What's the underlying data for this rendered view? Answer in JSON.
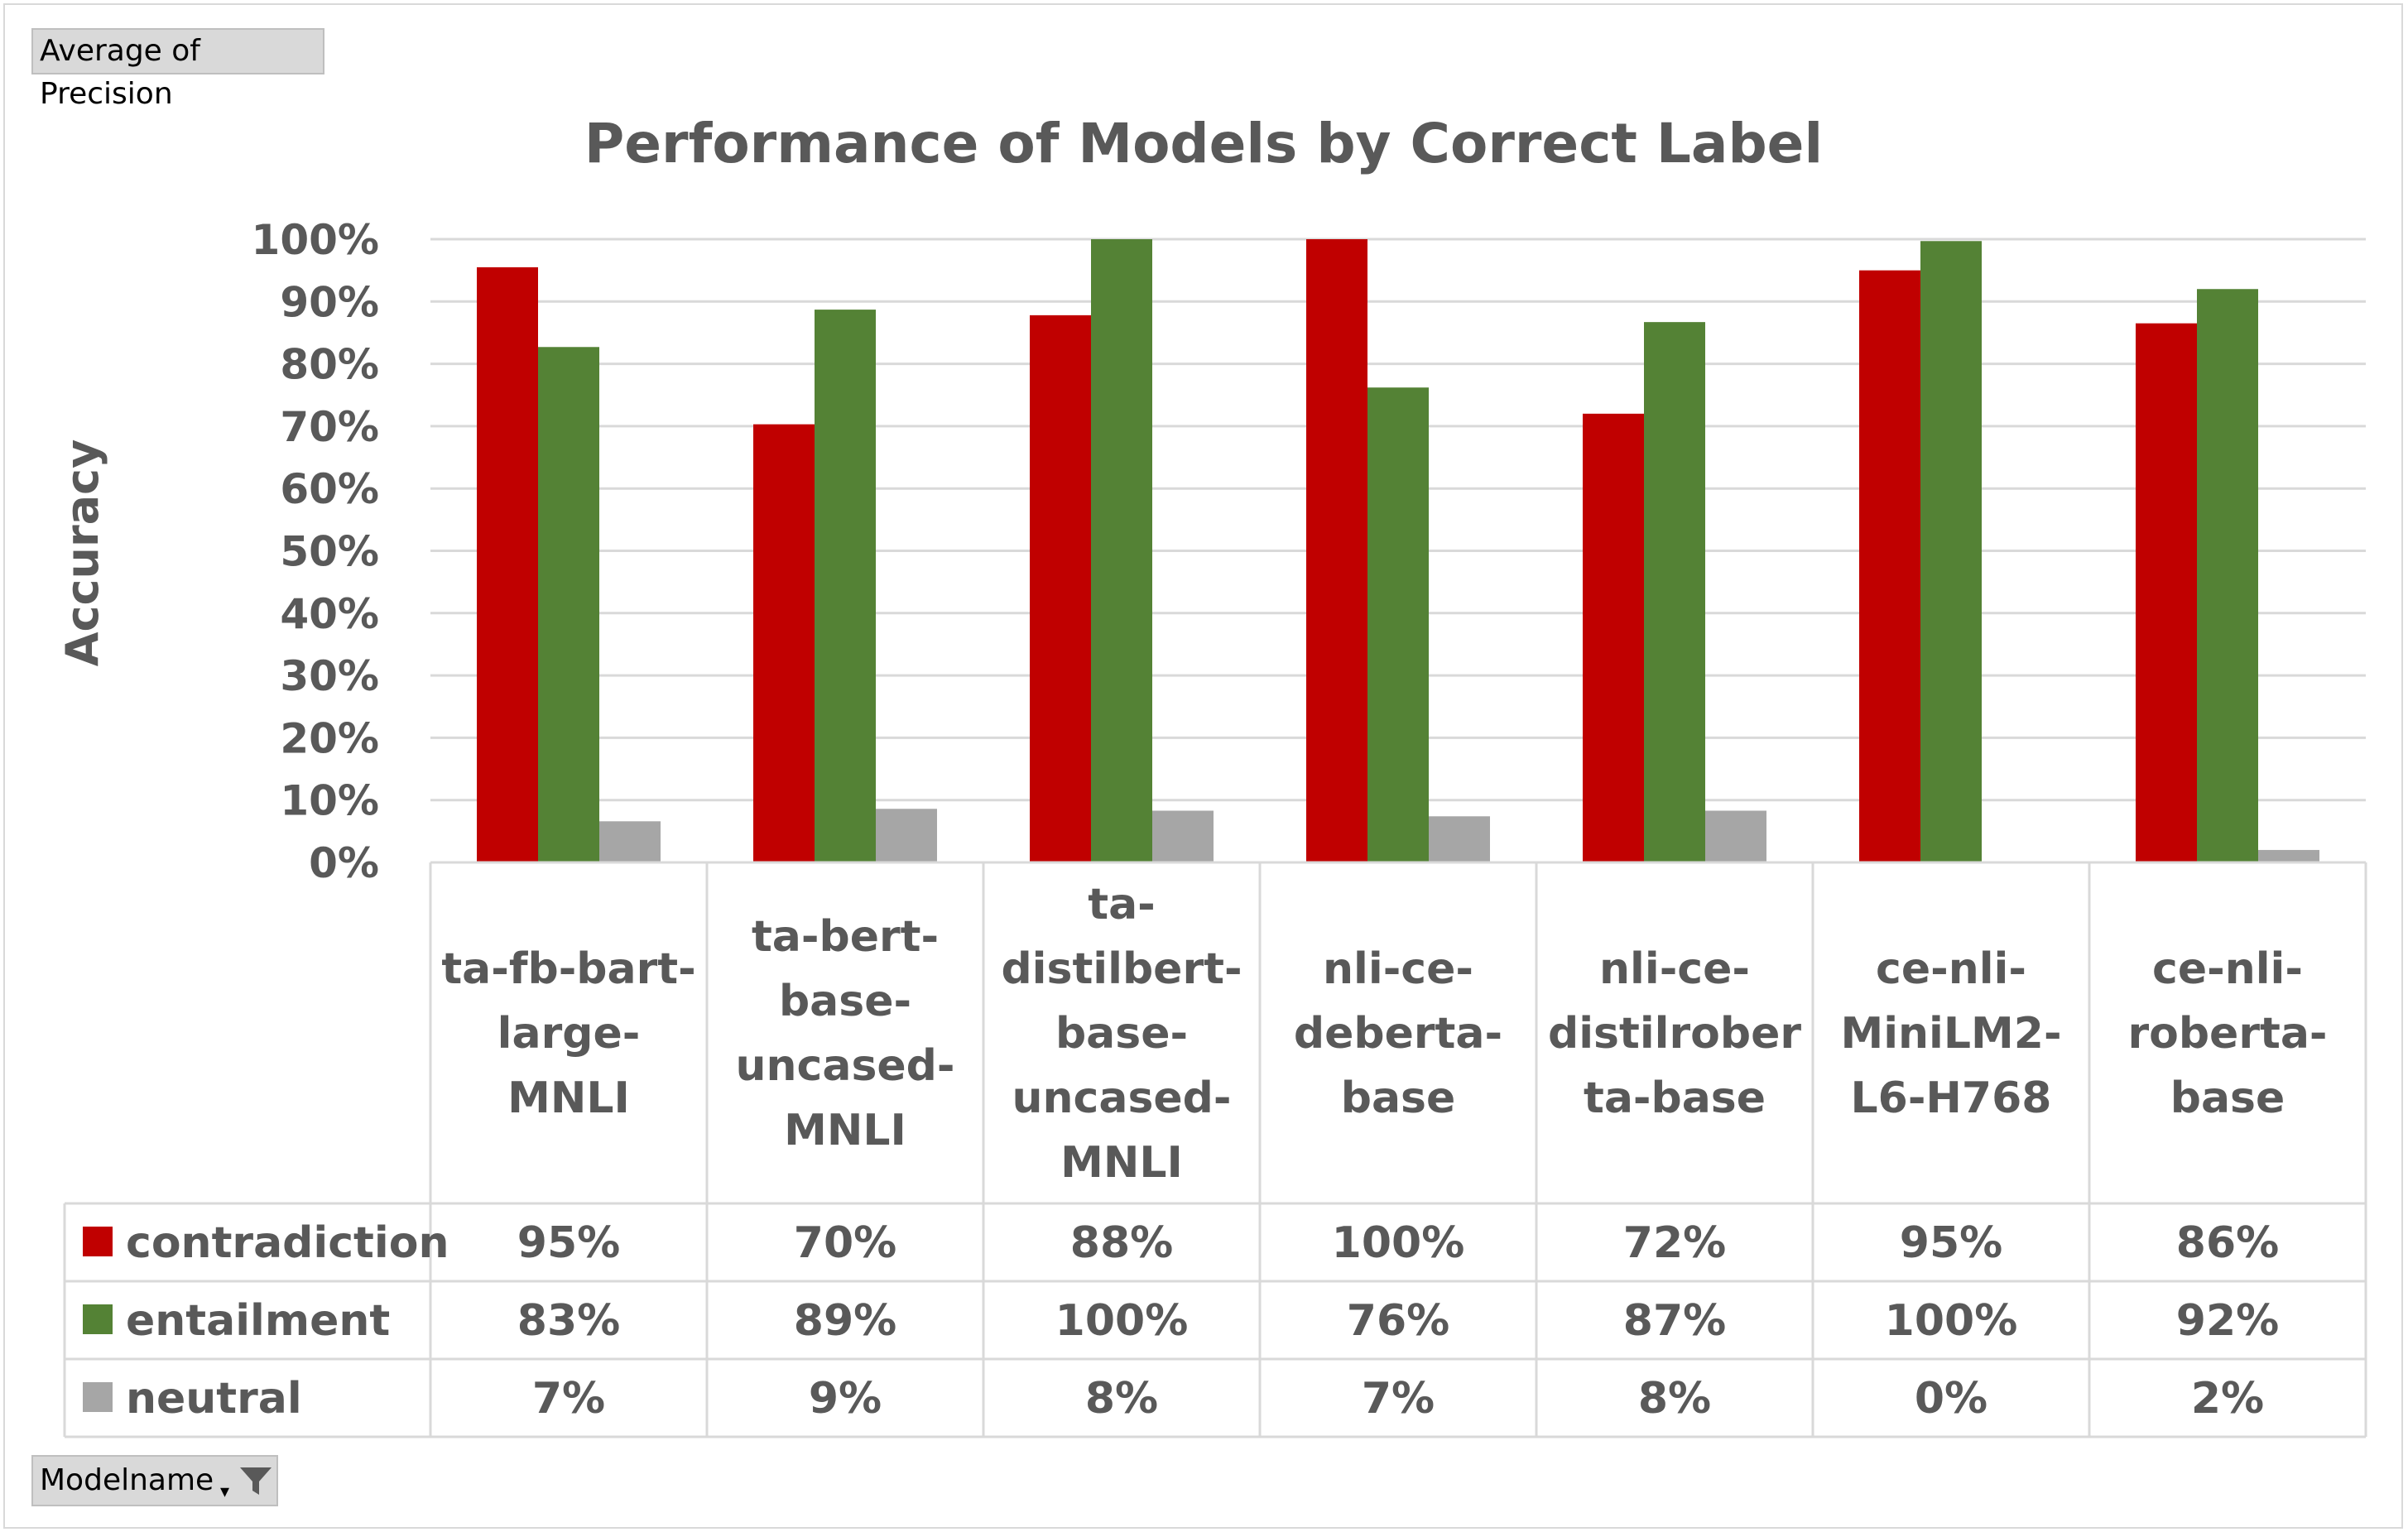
{
  "pivot": {
    "value_field": "Average of Precision",
    "axis_field": "Modelname"
  },
  "chart_data": {
    "type": "bar",
    "title": "Performance of Models by Correct Label",
    "xlabel": "",
    "ylabel": "Accuracy",
    "ylim": [
      0,
      1
    ],
    "y_ticks": [
      "0%",
      "10%",
      "20%",
      "30%",
      "40%",
      "50%",
      "60%",
      "70%",
      "80%",
      "90%",
      "100%"
    ],
    "grid": true,
    "legend": "data-table",
    "categories": [
      [
        "ta-fb-bart-",
        "large-",
        "MNLI"
      ],
      [
        "ta-bert-",
        "base-",
        "uncased-",
        "MNLI"
      ],
      [
        "ta-",
        "distilbert-",
        "base-",
        "uncased-",
        "MNLI"
      ],
      [
        "nli-ce-",
        "deberta-",
        "base"
      ],
      [
        "nli-ce-",
        "distilrober",
        "ta-base"
      ],
      [
        "ce-nli-",
        "MiniLM2-",
        "L6-H768"
      ],
      [
        "ce-nli-",
        "roberta-",
        "base"
      ]
    ],
    "series": [
      {
        "name": "contradiction",
        "color": "#c00000",
        "values": [
          0.955,
          0.703,
          0.878,
          1.0,
          0.72,
          0.95,
          0.865
        ],
        "labels": [
          "95%",
          "70%",
          "88%",
          "100%",
          "72%",
          "95%",
          "86%"
        ]
      },
      {
        "name": "entailment",
        "color": "#548235",
        "values": [
          0.827,
          0.887,
          1.0,
          0.762,
          0.867,
          0.997,
          0.92
        ],
        "labels": [
          "83%",
          "89%",
          "100%",
          "76%",
          "87%",
          "100%",
          "92%"
        ]
      },
      {
        "name": "neutral",
        "color": "#a6a6a6",
        "values": [
          0.066,
          0.086,
          0.083,
          0.074,
          0.083,
          0.0,
          0.02
        ],
        "labels": [
          "7%",
          "9%",
          "8%",
          "7%",
          "8%",
          "0%",
          "2%"
        ]
      }
    ]
  }
}
